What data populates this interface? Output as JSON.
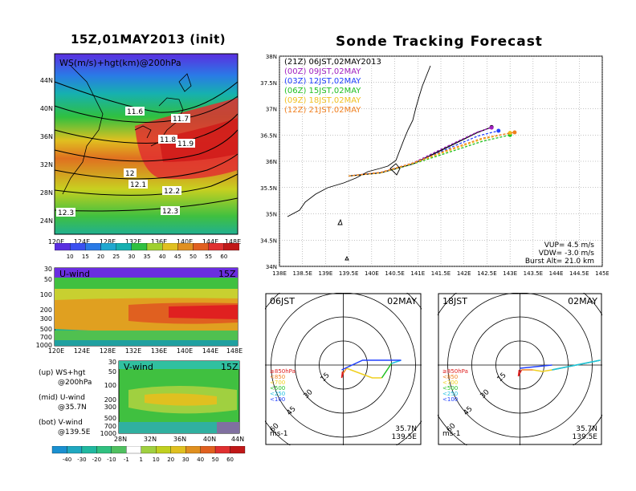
{
  "left_title": "15Z,01MAY2013 (init)",
  "right_title": "Sonde Tracking Forecast",
  "map_panel": {
    "label": "WS(m/s)+hgt(km)@200hPa",
    "lat_labels": [
      "44N",
      "40N",
      "36N",
      "32N",
      "28N",
      "24N"
    ],
    "lon_labels": [
      "120E",
      "124E",
      "128E",
      "132E",
      "136E",
      "140E",
      "144E",
      "148E"
    ],
    "contour_labels": [
      "11.6",
      "11.7",
      "11.8",
      "11.9",
      "12",
      "12.1",
      "12.2",
      "12.3",
      "12.3"
    ]
  },
  "ws_colorbar": {
    "ticks": [
      "10",
      "15",
      "20",
      "25",
      "30",
      "35",
      "40",
      "45",
      "50",
      "55",
      "60"
    ]
  },
  "u_panel": {
    "label": "U-wind",
    "time": "15Z",
    "p_labels": [
      "30",
      "50",
      "100",
      "200",
      "300",
      "500",
      "700",
      "1000"
    ],
    "lon_labels": [
      "120E",
      "124E",
      "128E",
      "132E",
      "136E",
      "140E",
      "144E",
      "148E"
    ]
  },
  "v_panel": {
    "label": "V-wind",
    "time": "15Z",
    "p_labels": [
      "30",
      "50",
      "100",
      "200",
      "300",
      "500",
      "700",
      "1000"
    ],
    "lat_labels": [
      "28N",
      "32N",
      "36N",
      "40N",
      "44N"
    ]
  },
  "legend_text": [
    "(up) WS+hgt",
    "@200hPa",
    "(mid) U-wind",
    "@35.7N",
    "(bot) V-wind",
    "@139.5E"
  ],
  "wind_colorbar": {
    "ticks": [
      "-40",
      "-30",
      "-20",
      "-10",
      "-1",
      "1",
      "10",
      "20",
      "30",
      "40",
      "50",
      "60"
    ]
  },
  "track_panel": {
    "lat_labels": [
      "38N",
      "37.5N",
      "37N",
      "36.5N",
      "36N",
      "35.5N",
      "35N",
      "34.5N",
      "34N"
    ],
    "lon_labels": [
      "138E",
      "138.5E",
      "139E",
      "139.5E",
      "140E",
      "140.5E",
      "141E",
      "141.5E",
      "142E",
      "142.5E",
      "143E",
      "143.5E",
      "144E",
      "144.5E",
      "145E"
    ],
    "legend": [
      {
        "text": "(21Z)  06JST,02MAY2013",
        "color": "#000000"
      },
      {
        "text": "(00Z)  09JST,02MAY",
        "color": "#a020c0"
      },
      {
        "text": "(03Z)  12JST,02MAY",
        "color": "#2040ff"
      },
      {
        "text": "(06Z)  15JST,02MAY",
        "color": "#20c020"
      },
      {
        "text": "(09Z)  18JST,02MAY",
        "color": "#f0c020"
      },
      {
        "text": "(12Z)  21JST,02MAY",
        "color": "#f08020"
      }
    ],
    "vup": "VUP= 4.5 m/s",
    "vdw": "VDW= -3.0 m/s",
    "burst": "Burst Alt= 21.0 km"
  },
  "hodo_left": {
    "time": "06JST",
    "date": "02MAY",
    "rings": [
      "15",
      "30",
      "45",
      "60"
    ],
    "levels": [
      "≥850hPa",
      "<850",
      "<700",
      "<500",
      "<250",
      "<100"
    ],
    "level_colors": [
      "#e02020",
      "#f08020",
      "#f0d020",
      "#20c020",
      "#20c0e0",
      "#2040ff"
    ],
    "lat": "35.7N",
    "lon": "139.5E",
    "unit": "ms-1"
  },
  "hodo_right": {
    "time": "18JST",
    "date": "02MAY",
    "rings": [
      "15",
      "30",
      "45",
      "60"
    ],
    "levels": [
      "≥850hPa",
      "<850",
      "<700",
      "<500",
      "<250",
      "<100"
    ],
    "level_colors": [
      "#e02020",
      "#f08020",
      "#f0d020",
      "#20c020",
      "#20c0e0",
      "#2040ff"
    ],
    "lat": "35.7N",
    "lon": "139.5E",
    "unit": "ms-1"
  },
  "chart_data": [
    {
      "type": "line",
      "title": "Sonde Tracking Forecast",
      "xlabel": "",
      "ylabel": "",
      "xlim": [
        138,
        145
      ],
      "ylim": [
        34,
        38
      ],
      "series": [
        {
          "name": "(21Z) 06JST,02MAY2013",
          "x": [
            139.5,
            140.2,
            140.9,
            141.6,
            142.3,
            142.6
          ],
          "y": [
            35.72,
            35.78,
            35.95,
            36.25,
            36.55,
            36.65
          ]
        },
        {
          "name": "(00Z) 09JST,02MAY",
          "x": [
            139.5,
            140.2,
            140.9,
            141.6,
            142.3,
            142.6
          ],
          "y": [
            35.72,
            35.79,
            35.97,
            36.27,
            36.56,
            36.64
          ]
        },
        {
          "name": "(03Z) 12JST,02MAY",
          "x": [
            139.5,
            140.2,
            140.9,
            141.6,
            142.3,
            142.75
          ],
          "y": [
            35.72,
            35.78,
            35.95,
            36.22,
            36.48,
            36.58
          ]
        },
        {
          "name": "(06Z) 15JST,02MAY",
          "x": [
            139.5,
            140.2,
            140.9,
            141.6,
            142.4,
            143.0
          ],
          "y": [
            35.72,
            35.78,
            35.95,
            36.15,
            36.38,
            36.5
          ]
        },
        {
          "name": "(09Z) 18JST,02MAY",
          "x": [
            139.5,
            140.2,
            140.9,
            141.6,
            142.4,
            143.0
          ],
          "y": [
            35.72,
            35.78,
            35.96,
            36.18,
            36.42,
            36.54
          ]
        },
        {
          "name": "(12Z) 21JST,02MAY",
          "x": [
            139.5,
            140.2,
            140.9,
            141.6,
            142.4,
            143.1
          ],
          "y": [
            35.72,
            35.79,
            35.97,
            36.2,
            36.44,
            36.55
          ]
        }
      ]
    }
  ]
}
